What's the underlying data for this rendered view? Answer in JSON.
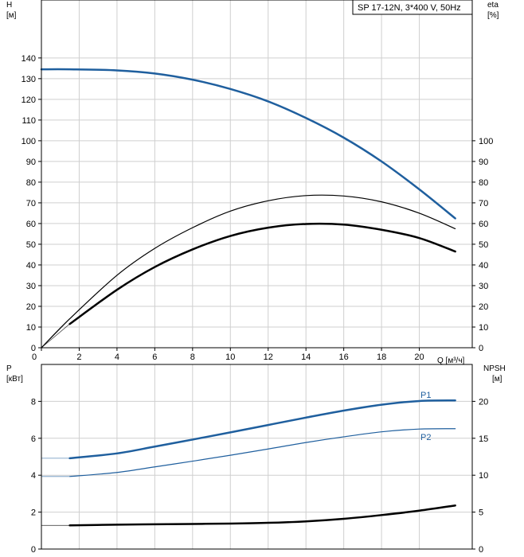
{
  "title": "SP 17-12N, 3*400 V, 50Hz",
  "chart_data": [
    {
      "type": "line",
      "title": "SP 17-12N, 3*400 V, 50Hz",
      "xlabel": "Q [м³/ч]",
      "x_axis": {
        "label": "Q [м³/ч]",
        "range": [
          0,
          22.8
        ],
        "ticks": [
          0,
          2,
          4,
          6,
          8,
          10,
          12,
          14,
          16,
          18,
          20
        ]
      },
      "y_left": {
        "label": "H",
        "unit": "[м]",
        "range": [
          0,
          168
        ],
        "ticks": [
          0,
          10,
          20,
          30,
          40,
          50,
          60,
          70,
          80,
          90,
          100,
          110,
          120,
          130,
          140
        ]
      },
      "y_right": {
        "label": "eta",
        "unit": "[%]",
        "range": [
          0,
          168
        ],
        "ticks": [
          0,
          10,
          20,
          30,
          40,
          50,
          60,
          70,
          80,
          90,
          100
        ]
      },
      "grid": true,
      "series": [
        {
          "key": "head",
          "axis": "left",
          "color": "#1f5f9e",
          "width": 2.5,
          "x": [
            0,
            1.5,
            4,
            6,
            8,
            10,
            12,
            14,
            16,
            18,
            20,
            21.9
          ],
          "y": [
            134.5,
            134.5,
            134,
            132.5,
            129.5,
            125,
            119,
            111,
            101.5,
            90,
            76.5,
            62.5
          ],
          "extension": {
            "x": [
              0,
              1.5
            ],
            "y": [
              134.5,
              134.5
            ]
          }
        },
        {
          "key": "efficiency-thin",
          "axis": "right",
          "color": "#000000",
          "width": 1.2,
          "x": [
            0,
            1.5,
            4,
            6,
            8,
            10,
            12,
            14,
            16,
            18,
            20,
            21.9
          ],
          "y": [
            0,
            14,
            35,
            48,
            58,
            66,
            71,
            73.5,
            73.3,
            70.5,
            65,
            57.5
          ],
          "extension": {
            "x": [
              0,
              1.5
            ],
            "y": [
              0,
              14
            ]
          }
        },
        {
          "key": "efficiency-thick",
          "axis": "right",
          "color": "#000000",
          "width": 2.5,
          "x": [
            1.5,
            4,
            6,
            8,
            10,
            12,
            14,
            16,
            18,
            20,
            21.9
          ],
          "y": [
            11.5,
            28,
            39,
            47.5,
            54,
            58,
            59.8,
            59.5,
            57,
            53,
            46.5
          ],
          "extension": {
            "x": [
              0,
              1.5
            ],
            "y": [
              0,
              11.5
            ]
          }
        }
      ]
    },
    {
      "type": "line",
      "x_axis": {
        "range": [
          0,
          22.8
        ],
        "ticks": [
          0,
          2,
          4,
          6,
          8,
          10,
          12,
          14,
          16,
          18,
          20
        ]
      },
      "y_left": {
        "label": "P",
        "unit": "[кВт]",
        "range": [
          0,
          10
        ],
        "ticks": [
          0,
          2,
          4,
          6,
          8
        ]
      },
      "y_right": {
        "label": "NPSH",
        "unit": "[м]",
        "range": [
          0,
          25
        ],
        "ticks": [
          0,
          5,
          10,
          15,
          20
        ]
      },
      "grid": true,
      "series": [
        {
          "name": "P1",
          "key": "p1",
          "axis": "left",
          "color": "#1f5f9e",
          "width": 2.5,
          "x": [
            1.5,
            4,
            6,
            8,
            10,
            12,
            14,
            16,
            18,
            20,
            21.9
          ],
          "y": [
            4.92,
            5.18,
            5.55,
            5.93,
            6.32,
            6.72,
            7.12,
            7.5,
            7.82,
            8.02,
            8.05
          ],
          "extension": {
            "x": [
              0,
              1.5
            ],
            "y": [
              4.92,
              4.92
            ]
          }
        },
        {
          "name": "P2",
          "key": "p2",
          "axis": "left",
          "color": "#1f5f9e",
          "width": 1.2,
          "x": [
            1.5,
            4,
            6,
            8,
            10,
            12,
            14,
            16,
            18,
            20,
            21.9
          ],
          "y": [
            3.93,
            4.15,
            4.45,
            4.76,
            5.08,
            5.42,
            5.77,
            6.08,
            6.35,
            6.5,
            6.52
          ],
          "extension": {
            "x": [
              0,
              1.5
            ],
            "y": [
              3.93,
              3.93
            ]
          }
        },
        {
          "key": "npsh",
          "axis": "right",
          "color": "#000000",
          "width": 2.5,
          "x": [
            1.5,
            4,
            6,
            8,
            10,
            12,
            14,
            16,
            18,
            20,
            21.9
          ],
          "y": [
            3.2,
            3.3,
            3.35,
            3.4,
            3.45,
            3.55,
            3.75,
            4.1,
            4.6,
            5.2,
            5.9
          ],
          "extension": {
            "x": [
              0,
              1.5
            ],
            "y": [
              3.2,
              3.2
            ]
          }
        }
      ]
    }
  ]
}
